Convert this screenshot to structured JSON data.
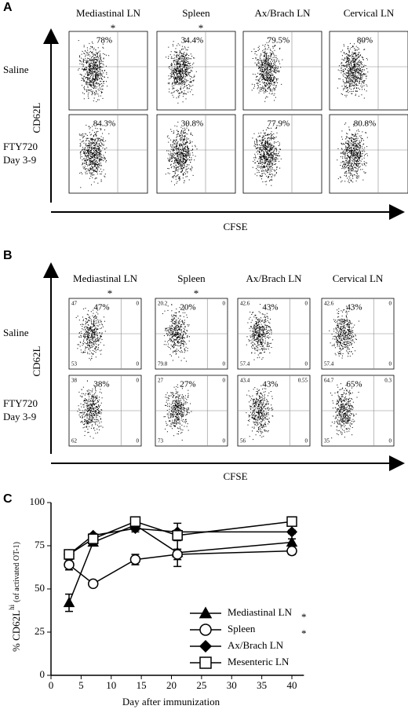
{
  "panel_a": {
    "label": "A",
    "columns": [
      "Mediastinal LN",
      "Spleen",
      "Ax/Brach LN",
      "Cervical LN"
    ],
    "asterisks": [
      "*",
      "*"
    ],
    "rows": [
      {
        "label": [
          "Saline"
        ],
        "percents": [
          "78%",
          "34.4%",
          "79.5%",
          "80%"
        ]
      },
      {
        "label": [
          "FTY720",
          "Day 3-9"
        ],
        "percents": [
          "84.3%",
          "30.8%",
          "77.9%",
          "80.8%"
        ]
      }
    ],
    "y_axis": "CD62L",
    "x_axis": "CFSE"
  },
  "panel_b": {
    "label": "B",
    "columns": [
      "Mediastinal LN",
      "Spleen",
      "Ax/Brach LN",
      "Cervical LN"
    ],
    "asterisks": [
      "*",
      "*"
    ],
    "rows": [
      {
        "label": [
          "Saline"
        ],
        "percents": [
          "47%",
          "20%",
          "43%",
          "43%"
        ],
        "quadrants": [
          [
            "47",
            "0",
            "53",
            "0"
          ],
          [
            "20.2",
            "0",
            "79.8",
            "0"
          ],
          [
            "42.6",
            "0",
            "57.4",
            "0"
          ],
          [
            "42.6",
            "0",
            "57.4",
            "0"
          ]
        ]
      },
      {
        "label": [
          "FTY720",
          "Day 3-9"
        ],
        "percents": [
          "38%",
          "27%",
          "43%",
          "65%"
        ],
        "quadrants": [
          [
            "38",
            "0",
            "62",
            "0"
          ],
          [
            "27",
            "0",
            "73",
            "0"
          ],
          [
            "43.4",
            "0.55",
            "56",
            "0"
          ],
          [
            "64.7",
            "0.3",
            "35",
            "0"
          ]
        ]
      }
    ],
    "y_axis": "CD62L",
    "x_axis": "CFSE"
  },
  "chart_data": {
    "type": "line",
    "label": "C",
    "x_label": "Day after immunization",
    "y_label": {
      "prefix": "% CD62L",
      "sup": "hi",
      "suffix": "(of activated OT-1)"
    },
    "x": [
      3,
      7,
      14,
      21,
      40
    ],
    "series": [
      {
        "name": "Mediastinal LN",
        "marker": "triangle",
        "fill": "#000000",
        "color": "#000000",
        "annotation": "*",
        "values": [
          42,
          77,
          87,
          71,
          77
        ],
        "errors": [
          5,
          2,
          3,
          8,
          2
        ]
      },
      {
        "name": "Spleen",
        "marker": "circle",
        "fill": "#ffffff",
        "color": "#000000",
        "annotation": "*",
        "values": [
          64,
          53,
          67,
          70,
          72
        ],
        "errors": [
          3,
          1,
          3,
          3,
          2
        ]
      },
      {
        "name": "Ax/Brach LN",
        "marker": "diamond",
        "fill": "#000000",
        "color": "#000000",
        "values": [
          70,
          81,
          85,
          83,
          83
        ],
        "errors": [
          2,
          1,
          2,
          5,
          1
        ]
      },
      {
        "name": "Mesenteric LN",
        "marker": "square",
        "fill": "#ffffff",
        "color": "#000000",
        "values": [
          70,
          79,
          89,
          81,
          89
        ],
        "errors": [
          2,
          1,
          2,
          3,
          1
        ]
      }
    ],
    "xlim": [
      0,
      42
    ],
    "xticks": [
      0,
      5,
      10,
      15,
      20,
      25,
      30,
      35,
      40
    ],
    "ylim": [
      0,
      100
    ],
    "yticks": [
      0,
      25,
      50,
      75,
      100
    ]
  }
}
